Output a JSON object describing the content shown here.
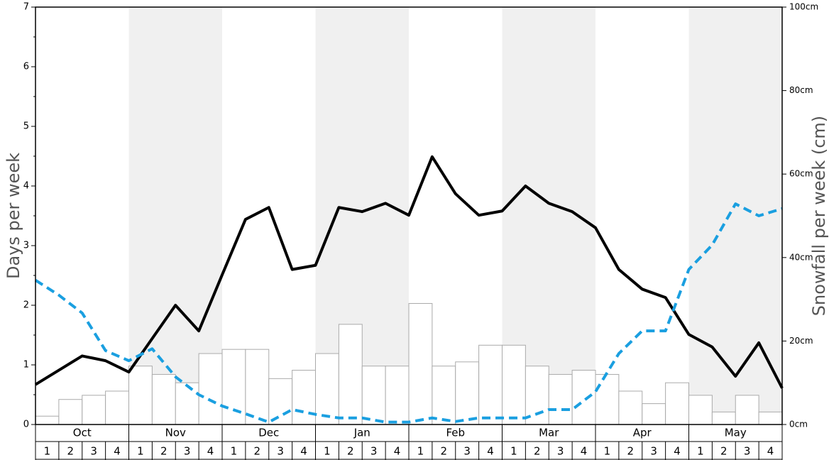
{
  "chart_data": {
    "type": "bar-line",
    "ylabel": "Days per week",
    "y2label": "Snowfall per week (cm)",
    "months": [
      "Oct",
      "Nov",
      "Dec",
      "Jan",
      "Feb",
      "Mar",
      "Apr",
      "May"
    ],
    "weeks": [
      1,
      2,
      3,
      4
    ],
    "ylim": [
      0,
      7
    ],
    "yticks": [
      0,
      1,
      2,
      3,
      4,
      5,
      6,
      7
    ],
    "y2lim": [
      0,
      100
    ],
    "y2ticks": [
      {
        "value": 0,
        "label": "0cm"
      },
      {
        "value": 20,
        "label": "20cm"
      },
      {
        "value": 40,
        "label": "40cm"
      },
      {
        "value": 60,
        "label": "60cm"
      },
      {
        "value": 80,
        "label": "80cm"
      },
      {
        "value": 100,
        "label": "100cm"
      }
    ],
    "bars": {
      "axis": "y2",
      "color": "#ffffff",
      "values": [
        2,
        6,
        7,
        8,
        14,
        12,
        10,
        17,
        18,
        18,
        11,
        13,
        17,
        24,
        14,
        14,
        29,
        14,
        15,
        19,
        19,
        14,
        12,
        13,
        12,
        8,
        5,
        10,
        7,
        3,
        7,
        3
      ]
    },
    "series": [
      {
        "color": "#000000",
        "dashed": false,
        "values": [
          0.67,
          0.91,
          1.15,
          1.07,
          0.88,
          1.44,
          2.0,
          1.57,
          2.51,
          3.44,
          3.64,
          2.6,
          2.67,
          3.64,
          3.57,
          3.71,
          3.51,
          4.49,
          3.87,
          3.51,
          3.58,
          4.0,
          3.71,
          3.57,
          3.3,
          2.6,
          2.27,
          2.13,
          1.51,
          1.3,
          0.81,
          1.37,
          0.61
        ]
      },
      {
        "color": "#1a9fe0",
        "dashed": true,
        "values": [
          2.42,
          2.17,
          1.87,
          1.24,
          1.07,
          1.27,
          0.8,
          0.5,
          0.31,
          0.18,
          0.04,
          0.25,
          0.17,
          0.11,
          0.11,
          0.04,
          0.04,
          0.11,
          0.05,
          0.11,
          0.11,
          0.11,
          0.25,
          0.25,
          0.55,
          1.19,
          1.57,
          1.57,
          2.6,
          3.01,
          3.7,
          3.5,
          3.62
        ]
      }
    ]
  }
}
